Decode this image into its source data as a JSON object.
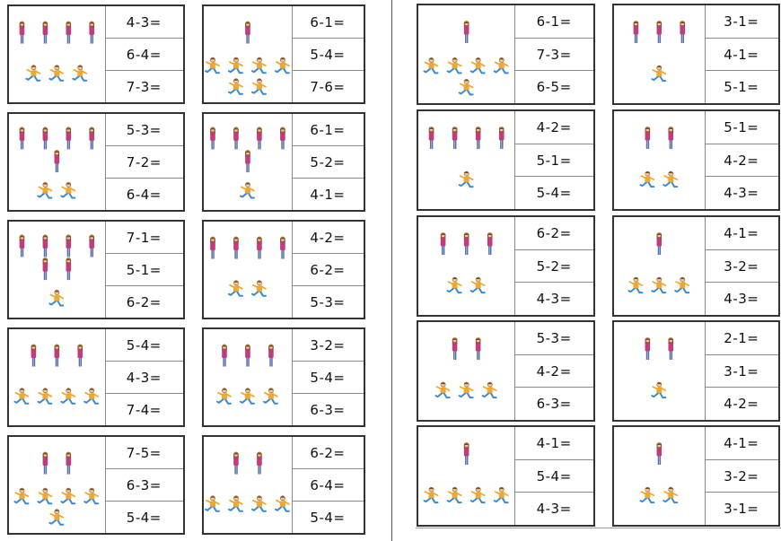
{
  "cards": [
    {
      "standing": 4,
      "running": 3,
      "problems": [
        "4-3=",
        "6-4=",
        "7-3="
      ]
    },
    {
      "standing": 1,
      "running": 6,
      "problems": [
        "6-1=",
        "5-4=",
        "7-6="
      ]
    },
    {
      "standing": 5,
      "running": 2,
      "problems": [
        "5-3=",
        "7-2=",
        "6-4="
      ]
    },
    {
      "standing": 5,
      "running": 1,
      "problems": [
        "6-1=",
        "5-2=",
        "4-1="
      ]
    },
    {
      "standing": 6,
      "running": 1,
      "problems": [
        "7-1=",
        "5-1=",
        "6-2="
      ]
    },
    {
      "standing": 4,
      "running": 2,
      "problems": [
        "4-2=",
        "6-2=",
        "5-3="
      ]
    },
    {
      "standing": 3,
      "running": 4,
      "problems": [
        "5-4=",
        "4-3=",
        "7-4="
      ]
    },
    {
      "standing": 3,
      "running": 3,
      "problems": [
        "3-2=",
        "5-4=",
        "6-3="
      ]
    },
    {
      "standing": 2,
      "running": 5,
      "problems": [
        "7-5=",
        "6-3=",
        "5-4="
      ]
    },
    {
      "standing": 2,
      "running": 4,
      "problems": [
        "6-2=",
        "6-4=",
        "5-4="
      ]
    },
    {
      "standing": 1,
      "running": 5,
      "problems": [
        "6-1=",
        "7-3=",
        "6-5="
      ]
    },
    {
      "standing": 3,
      "running": 1,
      "problems": [
        "3-1=",
        "4-1=",
        "5-1="
      ]
    },
    {
      "standing": 4,
      "running": 1,
      "problems": [
        "4-2=",
        "5-1=",
        "5-4="
      ]
    },
    {
      "standing": 2,
      "running": 2,
      "problems": [
        "5-1=",
        "4-2=",
        "4-3="
      ]
    },
    {
      "standing": 3,
      "running": 2,
      "problems": [
        "6-2=",
        "5-2=",
        "4-3="
      ]
    },
    {
      "standing": 1,
      "running": 3,
      "problems": [
        "4-1=",
        "3-2=",
        "4-3="
      ]
    },
    {
      "standing": 2,
      "running": 3,
      "problems": [
        "5-3=",
        "4-2=",
        "6-3="
      ]
    },
    {
      "standing": 2,
      "running": 1,
      "problems": [
        "2-1=",
        "3-1=",
        "4-2="
      ]
    },
    {
      "standing": 1,
      "running": 4,
      "problems": [
        "4-1=",
        "5-4=",
        "4-3="
      ]
    },
    {
      "standing": 1,
      "running": 2,
      "problems": [
        "4-1=",
        "3-2=",
        "3-1="
      ]
    }
  ]
}
